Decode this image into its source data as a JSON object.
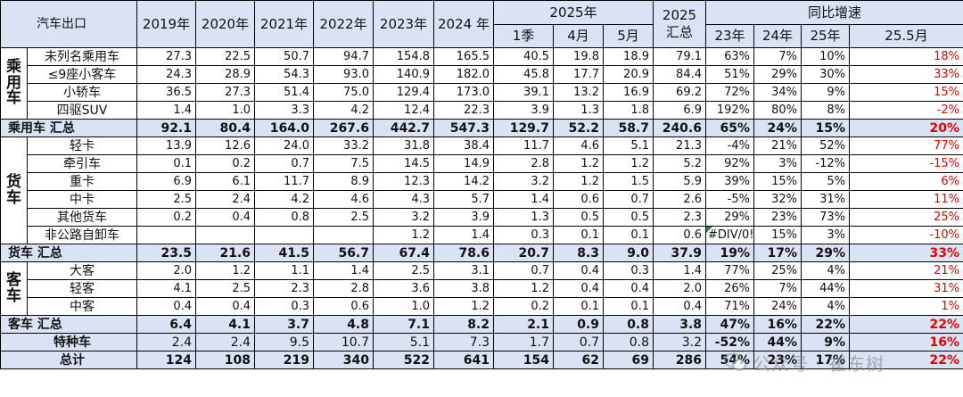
{
  "header": {
    "corner": "汽车出口",
    "years": [
      "2019年",
      "2020年",
      "2021年",
      "2022年",
      "2023年",
      "2024 年"
    ],
    "group_2025": "2025年",
    "sub_2025": [
      "1季",
      "4月",
      "5月"
    ],
    "total_2025": "2025\n汇总",
    "total_2025_l1": "2025",
    "total_2025_l2": "汇总",
    "yoy": "同比增速",
    "yoy_cols": [
      "23年",
      "24年",
      "25年",
      "25.5月"
    ]
  },
  "groups": {
    "passenger": "乘\n用\n车",
    "truck": "货\n车",
    "bus": "客\n车"
  },
  "rows": [
    {
      "name": "未列名乘用车",
      "cells": [
        "27.3",
        "22.5",
        "50.7",
        "94.7",
        "154.8",
        "165.5",
        "40.5",
        "19.8",
        "18.9",
        "79.1",
        "63%",
        "7%",
        "10%",
        "18%"
      ]
    },
    {
      "name": "≤9座小客车",
      "cells": [
        "24.3",
        "28.9",
        "54.3",
        "93.0",
        "140.9",
        "182.0",
        "45.8",
        "17.7",
        "20.9",
        "84.4",
        "51%",
        "29%",
        "30%",
        "33%"
      ]
    },
    {
      "name": "小轿车",
      "cells": [
        "36.5",
        "27.3",
        "51.4",
        "75.0",
        "129.4",
        "173.0",
        "39.1",
        "13.2",
        "16.9",
        "69.2",
        "72%",
        "34%",
        "9%",
        "15%"
      ]
    },
    {
      "name": "四驱SUV",
      "cells": [
        "1.4",
        "1.0",
        "3.3",
        "4.2",
        "12.4",
        "22.3",
        "3.9",
        "1.3",
        "1.8",
        "6.9",
        "192%",
        "80%",
        "8%",
        "-2%"
      ]
    },
    {
      "name": "乘用车 汇总",
      "cells": [
        "92.1",
        "80.4",
        "164.0",
        "267.6",
        "442.7",
        "547.3",
        "129.7",
        "52.2",
        "58.7",
        "240.6",
        "65%",
        "24%",
        "15%",
        "20%"
      ]
    },
    {
      "name": "轻卡",
      "cells": [
        "13.9",
        "12.6",
        "24.0",
        "33.2",
        "31.8",
        "38.4",
        "11.7",
        "4.6",
        "5.1",
        "21.3",
        "-4%",
        "21%",
        "52%",
        "77%"
      ]
    },
    {
      "name": "牵引车",
      "cells": [
        "0.1",
        "0.2",
        "0.7",
        "7.5",
        "14.5",
        "14.9",
        "2.8",
        "1.2",
        "1.2",
        "5.2",
        "92%",
        "3%",
        "-12%",
        "-15%"
      ]
    },
    {
      "name": "重卡",
      "cells": [
        "6.9",
        "6.1",
        "11.7",
        "8.9",
        "12.3",
        "14.2",
        "3.2",
        "1.2",
        "1.5",
        "5.9",
        "39%",
        "15%",
        "5%",
        "6%"
      ]
    },
    {
      "name": "中卡",
      "cells": [
        "2.5",
        "2.4",
        "4.2",
        "4.6",
        "4.3",
        "5.7",
        "1.4",
        "0.6",
        "0.7",
        "2.6",
        "-5%",
        "32%",
        "31%",
        "11%"
      ]
    },
    {
      "name": "其他货车",
      "cells": [
        "0.2",
        "0.4",
        "0.8",
        "2.5",
        "3.2",
        "3.9",
        "1.3",
        "0.5",
        "0.5",
        "2.3",
        "29%",
        "23%",
        "73%",
        "25%"
      ]
    },
    {
      "name": "非公路自卸车",
      "cells": [
        "",
        "",
        "",
        "",
        "1.2",
        "1.4",
        "0.3",
        "0.1",
        "0.1",
        "0.6",
        "#DIV/0!",
        "15%",
        "3%",
        "-10%"
      ]
    },
    {
      "name": "货车 汇总",
      "cells": [
        "23.5",
        "21.6",
        "41.5",
        "56.7",
        "67.4",
        "78.6",
        "20.7",
        "8.3",
        "9.0",
        "37.9",
        "19%",
        "17%",
        "29%",
        "33%"
      ]
    },
    {
      "name": "大客",
      "cells": [
        "2.0",
        "1.2",
        "1.1",
        "1.4",
        "2.5",
        "3.1",
        "0.7",
        "0.4",
        "0.3",
        "1.4",
        "77%",
        "25%",
        "4%",
        "21%"
      ]
    },
    {
      "name": "轻客",
      "cells": [
        "4.1",
        "2.5",
        "2.3",
        "2.8",
        "3.6",
        "3.8",
        "1.2",
        "0.4",
        "0.4",
        "2.0",
        "26%",
        "7%",
        "44%",
        "31%"
      ]
    },
    {
      "name": "中客",
      "cells": [
        "0.4",
        "0.4",
        "0.3",
        "0.6",
        "1.0",
        "1.2",
        "0.2",
        "0.1",
        "0.1",
        "0.4",
        "71%",
        "24%",
        "4%",
        "1%"
      ]
    },
    {
      "name": "客车 汇总",
      "cells": [
        "6.4",
        "4.1",
        "3.7",
        "4.8",
        "7.1",
        "8.2",
        "2.1",
        "0.9",
        "0.8",
        "3.8",
        "47%",
        "16%",
        "22%",
        "22%"
      ]
    },
    {
      "name": "特种车",
      "cells": [
        "2.4",
        "2.4",
        "9.5",
        "10.7",
        "5.1",
        "7.3",
        "1.7",
        "0.7",
        "0.8",
        "3.2",
        "-52%",
        "44%",
        "9%",
        "16%"
      ]
    },
    {
      "name": "总计",
      "cells": [
        "124",
        "108",
        "219",
        "340",
        "522",
        "641",
        "154",
        "62",
        "69",
        "286",
        "54%",
        "23%",
        "17%",
        "22%"
      ]
    }
  ],
  "watermark": "公众号 · 崔东树",
  "colors": {
    "header_bg": "#dae3f3",
    "alert": "#e00000",
    "border": "#000000"
  }
}
